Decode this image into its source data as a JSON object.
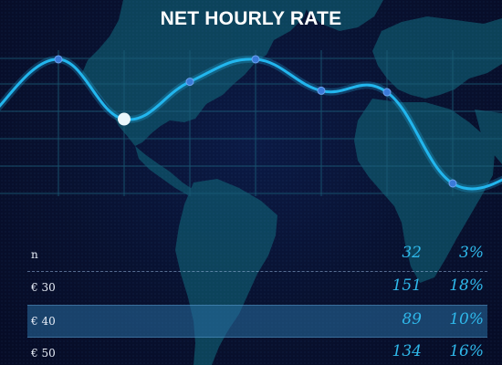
{
  "title": "NET HOURLY RATE",
  "colors": {
    "background": "#070d2c",
    "line": "#22b6ee",
    "point": "#3a7ad8",
    "highlight_point": "#eaf6fb",
    "accent_text": "#2fb8ea",
    "selected_row": "#2c6e9a"
  },
  "chart_data": {
    "type": "line",
    "series": [
      {
        "values": [
          0.62,
          0.98,
          0.58,
          0.83,
          0.98,
          0.77,
          0.76,
          0.15,
          0.22
        ]
      }
    ],
    "highlighted_index": 2,
    "grid": true,
    "smooth": true
  },
  "table": {
    "rows": [
      {
        "label": "n",
        "count": "32",
        "percent": "3%",
        "selected": false
      },
      {
        "label": "€ 30",
        "count": "151",
        "percent": "18%",
        "selected": false
      },
      {
        "label": "€ 40",
        "count": "89",
        "percent": "10%",
        "selected": true
      },
      {
        "label": "€ 50",
        "count": "134",
        "percent": "16%",
        "selected": false
      }
    ]
  }
}
